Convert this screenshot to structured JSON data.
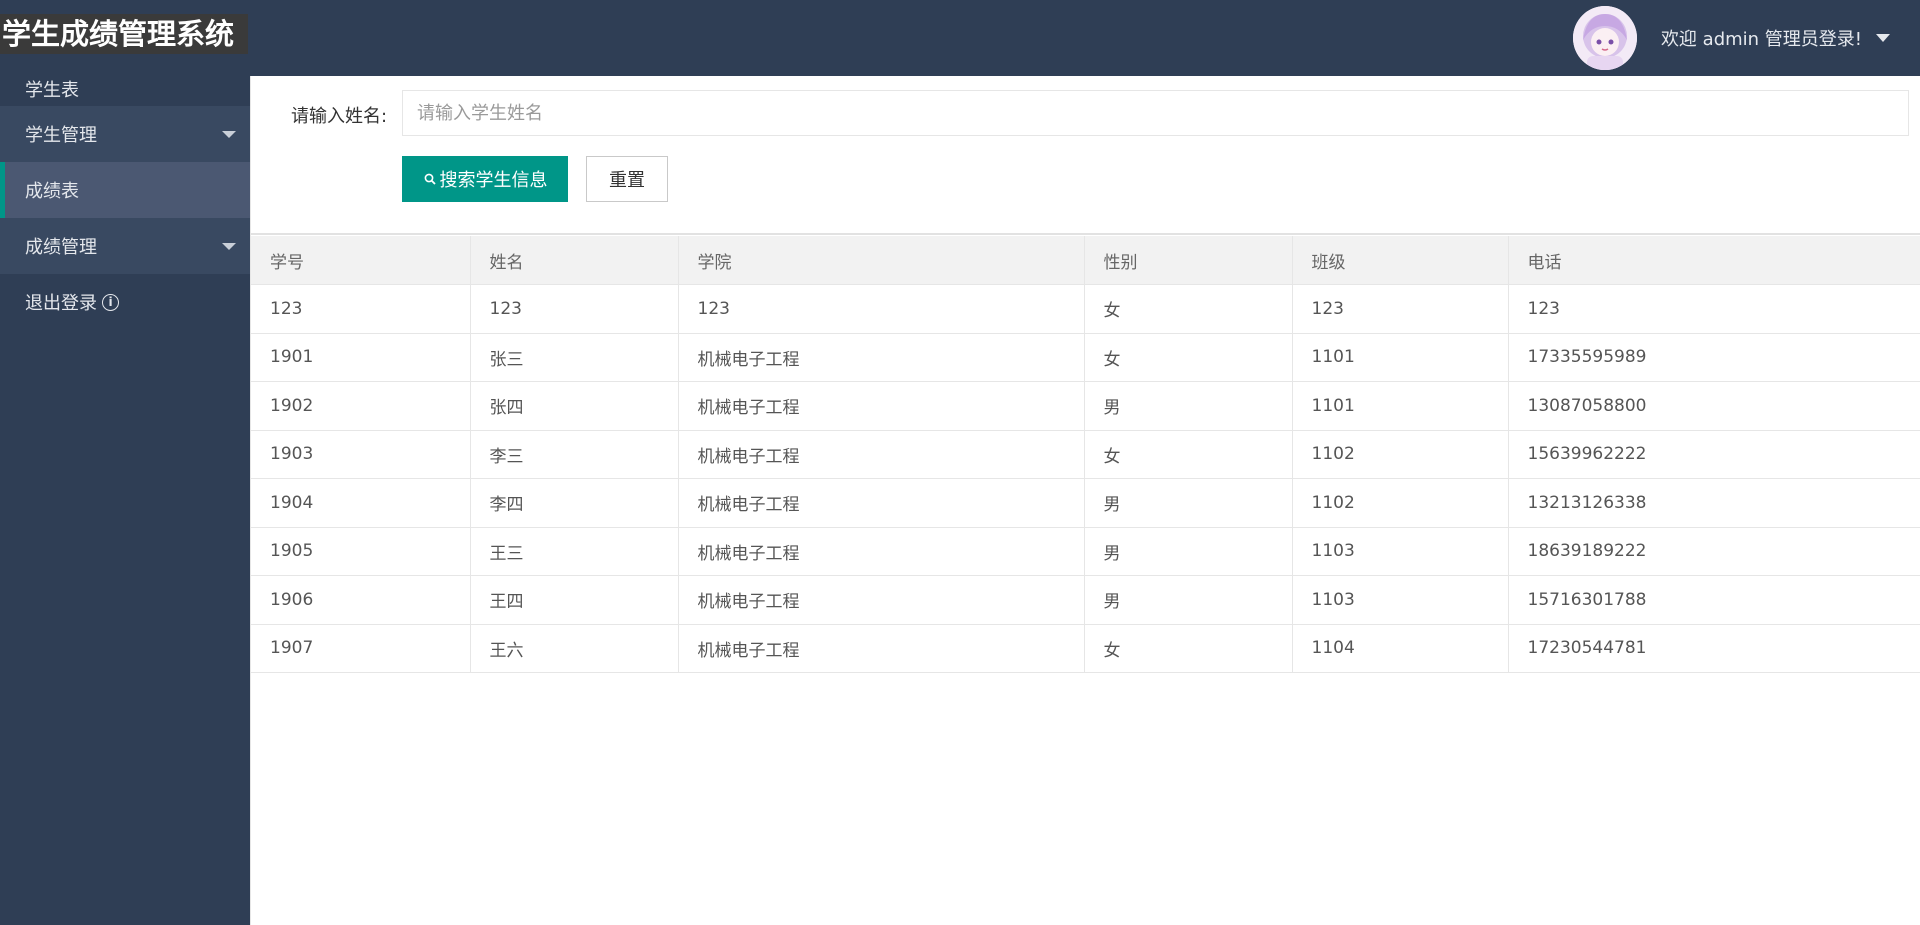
{
  "app": {
    "title": "学生成绩管理系统"
  },
  "header": {
    "welcome": "欢迎 admin 管理员登录!"
  },
  "sidebar": {
    "items": [
      {
        "label": "学生表"
      },
      {
        "label": "学生管理"
      },
      {
        "label": "成绩表"
      },
      {
        "label": "成绩管理"
      },
      {
        "label": "退出登录"
      }
    ]
  },
  "search": {
    "label": "请输入姓名:",
    "placeholder": "请输入学生姓名",
    "value": "",
    "search_button": "搜索学生信息",
    "reset_button": "重置"
  },
  "table": {
    "columns": [
      "学号",
      "姓名",
      "学院",
      "性别",
      "班级",
      "电话"
    ],
    "rows": [
      [
        "123",
        "123",
        "123",
        "女",
        "123",
        "123"
      ],
      [
        "1901",
        "张三",
        "机械电子工程",
        "女",
        "1101",
        "17335595989"
      ],
      [
        "1902",
        "张四",
        "机械电子工程",
        "男",
        "1101",
        "13087058800"
      ],
      [
        "1903",
        "李三",
        "机械电子工程",
        "女",
        "1102",
        "15639962222"
      ],
      [
        "1904",
        "李四",
        "机械电子工程",
        "男",
        "1102",
        "13213126338"
      ],
      [
        "1905",
        "王三",
        "机械电子工程",
        "男",
        "1103",
        "18639189222"
      ],
      [
        "1906",
        "王四",
        "机械电子工程",
        "男",
        "1103",
        "15716301788"
      ],
      [
        "1907",
        "王六",
        "机械电子工程",
        "女",
        "1104",
        "17230544781"
      ]
    ]
  },
  "colors": {
    "nav_bg": "#2f3e55",
    "accent": "#009688",
    "active_item": "#4b5872"
  }
}
